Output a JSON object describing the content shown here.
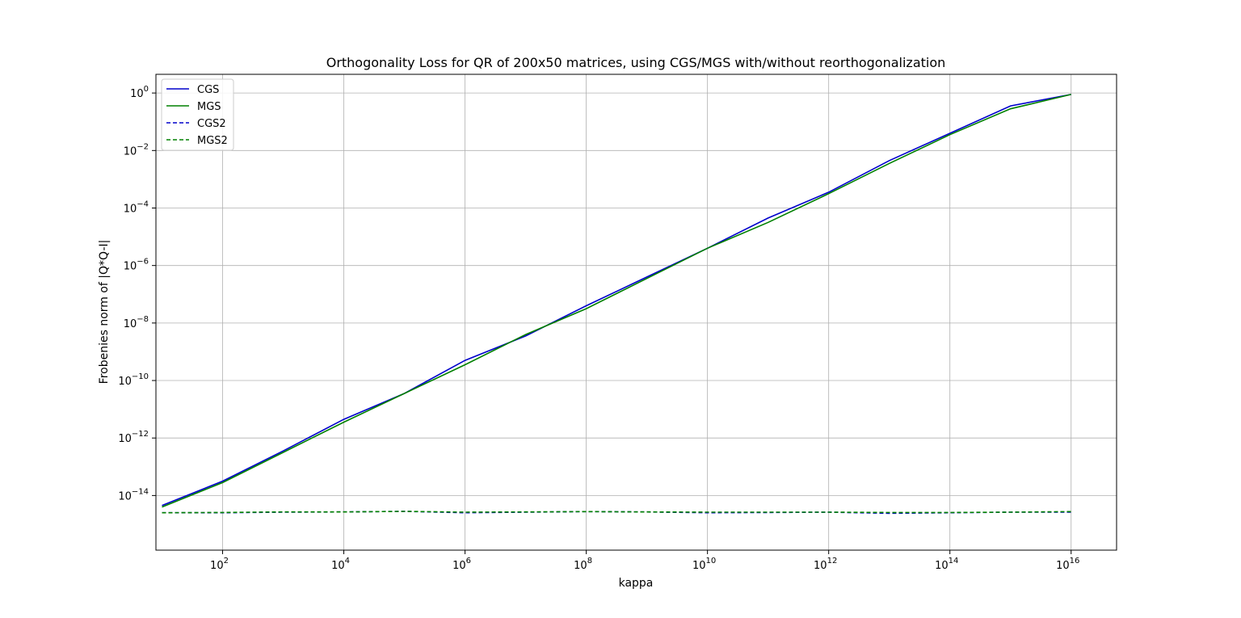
{
  "chart_data": {
    "type": "line",
    "title": "Orthogonality Loss for QR of 200x50 matrices, using CGS/MGS with/without reorthogonalization",
    "xlabel": "kappa",
    "ylabel": "Frobenies norm of |Q*Q-I|",
    "xscale": "log",
    "yscale": "log",
    "xlim_exp": [
      0.9,
      16.75
    ],
    "ylim_exp": [
      -15.9,
      0.65
    ],
    "grid": true,
    "legend_position": "upper-left",
    "x_ticks": [
      {
        "base": "10",
        "exp": "2",
        "value": 2
      },
      {
        "base": "10",
        "exp": "4",
        "value": 4
      },
      {
        "base": "10",
        "exp": "6",
        "value": 6
      },
      {
        "base": "10",
        "exp": "8",
        "value": 8
      },
      {
        "base": "10",
        "exp": "10",
        "value": 10
      },
      {
        "base": "10",
        "exp": "12",
        "value": 12
      },
      {
        "base": "10",
        "exp": "14",
        "value": 14
      },
      {
        "base": "10",
        "exp": "16",
        "value": 16
      }
    ],
    "y_ticks": [
      {
        "base": "10",
        "exp": "0",
        "value": 0
      },
      {
        "base": "10",
        "exp": "−2",
        "value": -2
      },
      {
        "base": "10",
        "exp": "−4",
        "value": -4
      },
      {
        "base": "10",
        "exp": "−6",
        "value": -6
      },
      {
        "base": "10",
        "exp": "−8",
        "value": -8
      },
      {
        "base": "10",
        "exp": "−10",
        "value": -10
      },
      {
        "base": "10",
        "exp": "−12",
        "value": -12
      },
      {
        "base": "10",
        "exp": "−14",
        "value": -14
      }
    ],
    "x_exp": [
      1,
      2,
      3,
      4,
      5,
      6,
      7,
      8,
      9,
      10,
      11,
      12,
      13,
      14,
      15,
      16
    ],
    "series": [
      {
        "name": "CGS",
        "color": "#0000cc",
        "dash": false,
        "log10_values": [
          -14.35,
          -13.5,
          -12.45,
          -11.35,
          -10.45,
          -9.3,
          -8.45,
          -7.4,
          -6.4,
          -5.4,
          -4.35,
          -3.45,
          -2.35,
          -1.4,
          -0.45,
          -0.05
        ]
      },
      {
        "name": "MGS",
        "color": "#008000",
        "dash": false,
        "log10_values": [
          -14.4,
          -13.55,
          -12.5,
          -11.45,
          -10.45,
          -9.45,
          -8.4,
          -7.5,
          -6.45,
          -5.4,
          -4.5,
          -3.5,
          -2.45,
          -1.45,
          -0.55,
          -0.05
        ]
      },
      {
        "name": "CGS2",
        "color": "#0000cc",
        "dash": true,
        "log10_values": [
          -14.6,
          -14.6,
          -14.58,
          -14.57,
          -14.55,
          -14.6,
          -14.58,
          -14.56,
          -14.57,
          -14.6,
          -14.59,
          -14.58,
          -14.62,
          -14.6,
          -14.58,
          -14.58
        ]
      },
      {
        "name": "MGS2",
        "color": "#008000",
        "dash": true,
        "log10_values": [
          -14.6,
          -14.59,
          -14.57,
          -14.57,
          -14.55,
          -14.58,
          -14.57,
          -14.56,
          -14.57,
          -14.58,
          -14.58,
          -14.58,
          -14.59,
          -14.59,
          -14.58,
          -14.56
        ]
      }
    ]
  }
}
